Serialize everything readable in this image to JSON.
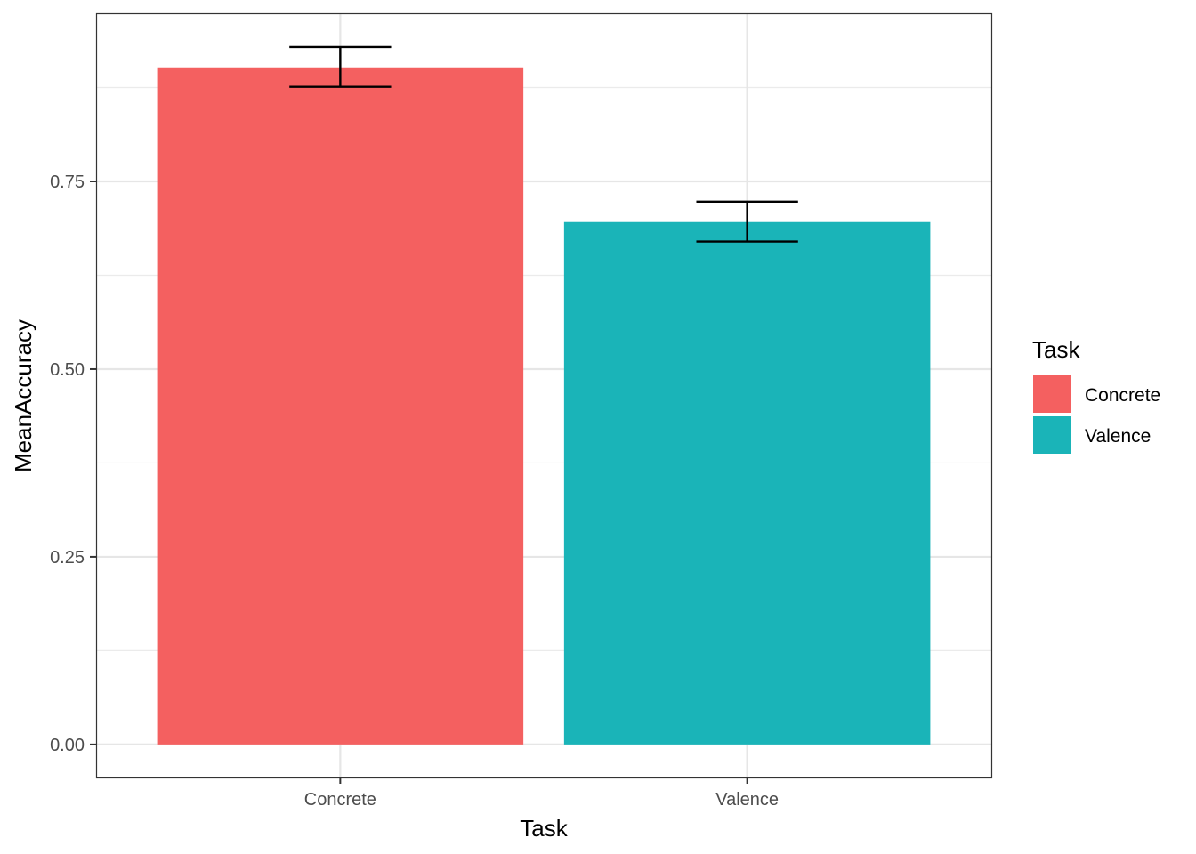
{
  "chart_data": {
    "type": "bar",
    "title": "",
    "xlabel": "Task",
    "ylabel": "MeanAccuracy",
    "categories": [
      "Concrete",
      "Valence"
    ],
    "values": [
      0.902,
      0.697
    ],
    "error_bars": [
      {
        "low": 0.876,
        "high": 0.929
      },
      {
        "low": 0.67,
        "high": 0.723
      }
    ],
    "colors": [
      "#F46060",
      "#1AB4B8"
    ],
    "ylim": [
      -0.044,
      0.974
    ],
    "yticks": [
      0.0,
      0.25,
      0.5,
      0.75
    ],
    "ytick_labels": [
      "0.00",
      "0.25",
      "0.50",
      "0.75"
    ],
    "grid": true,
    "legend": {
      "title": "Task",
      "position": "right",
      "entries": [
        "Concrete",
        "Valence"
      ]
    }
  }
}
